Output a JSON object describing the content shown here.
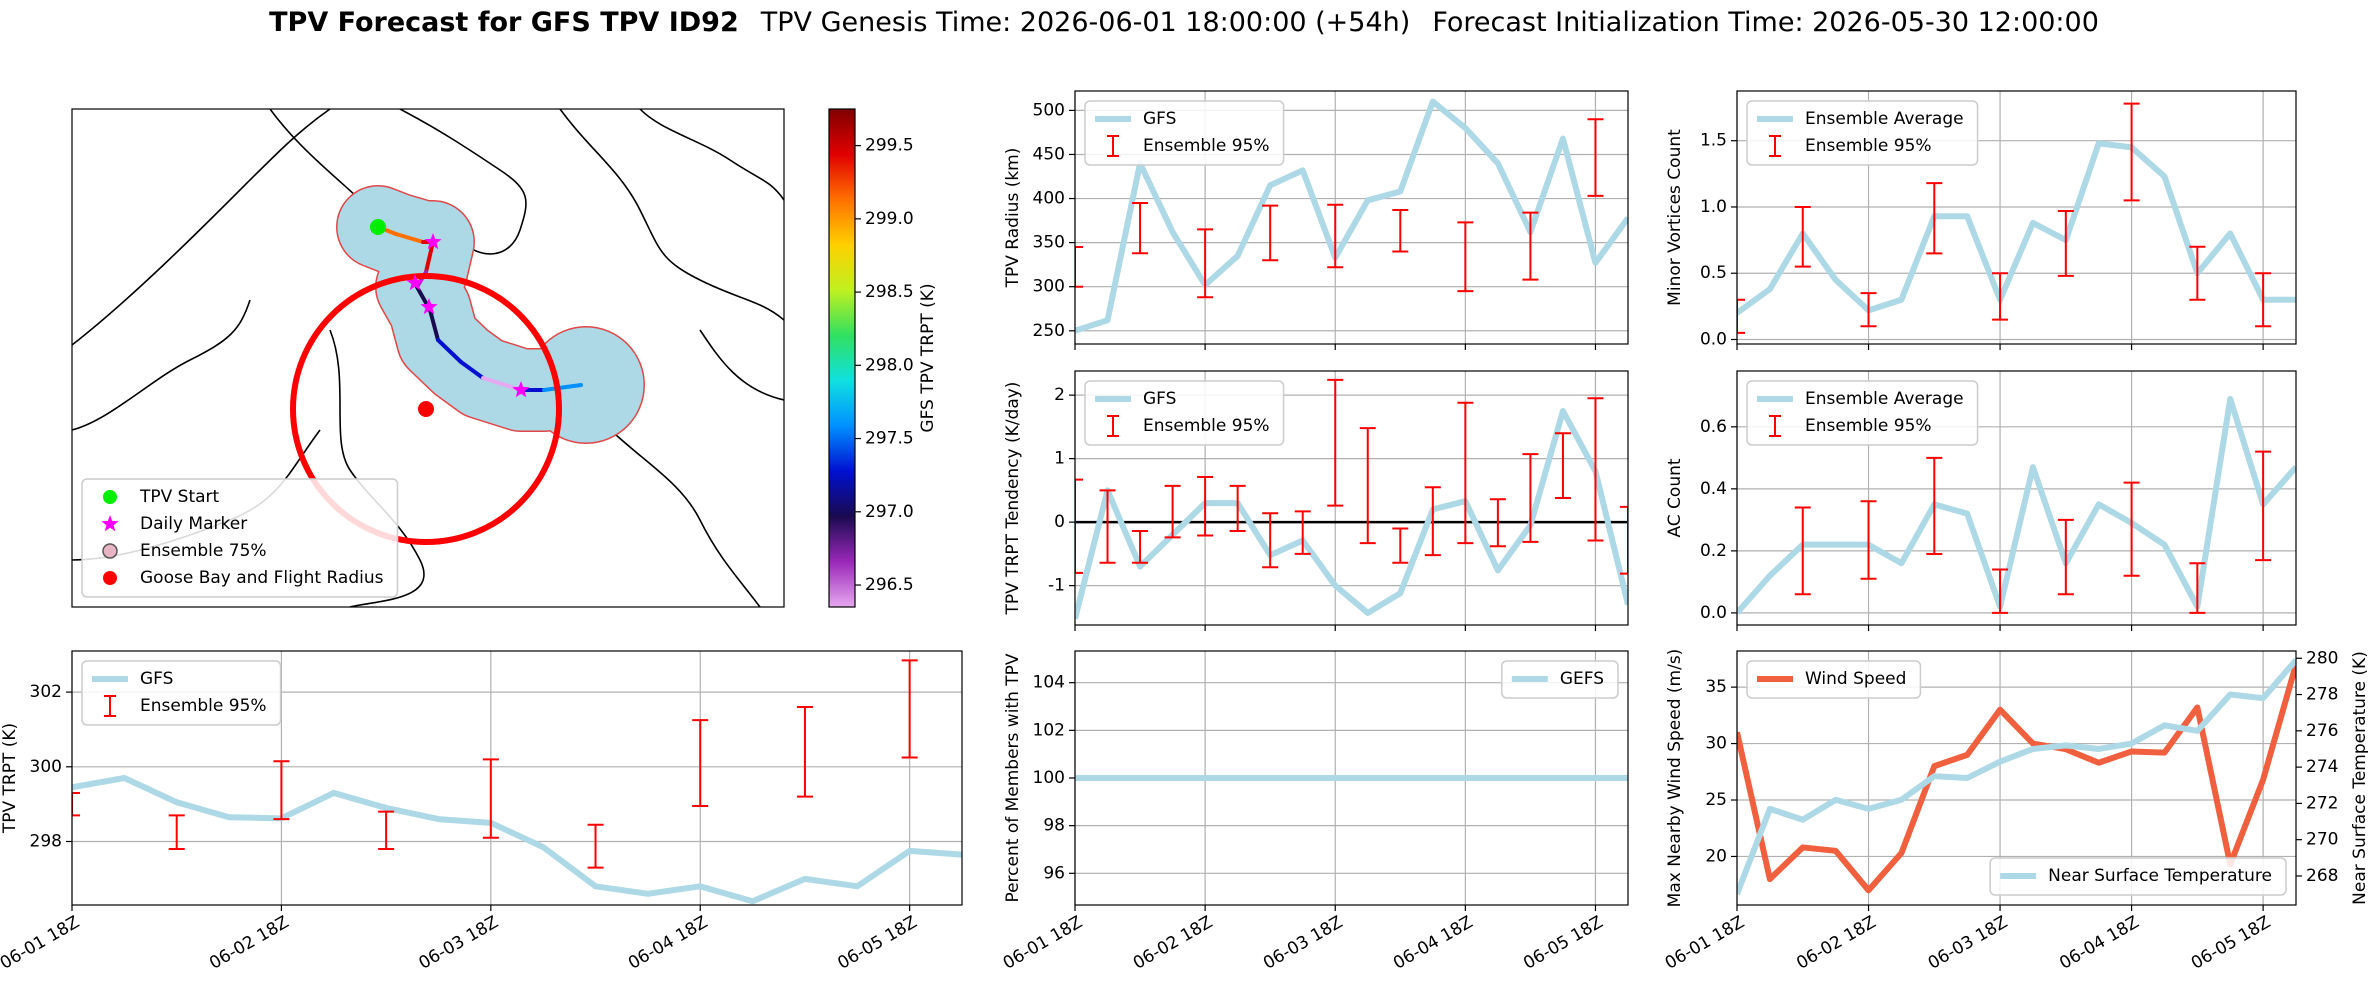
{
  "header": {
    "title": "TPV Forecast for GFS TPV ID92",
    "genesis": "TPV Genesis Time: 2026-06-01 18:00:00 (+54h)",
    "init": "Forecast Initialization Time: 2026-05-30 12:00:00"
  },
  "chart_data": [
    {
      "type": "map",
      "legend": [
        {
          "label": "TPV Start",
          "color": "#00ee00",
          "marker": "circle"
        },
        {
          "label": "Daily Marker",
          "color": "#ff00ff",
          "marker": "star"
        },
        {
          "label": "Ensemble 75%",
          "color": "#e8b4c4",
          "marker": "circle"
        },
        {
          "label": "Goose Bay and Flight Radius",
          "color": "#ff0000",
          "marker": "circle"
        }
      ],
      "colorbar": {
        "label": "GFS TPV TRPT (K)",
        "lim": [
          296.35,
          299.75
        ],
        "ticks": [
          296.5,
          {
            "value": 297,
            "label": "297.0"
          },
          297.5,
          {
            "value": 298,
            "label": "298.0"
          },
          298.5,
          {
            "value": 299,
            "label": "299.0"
          },
          299.5
        ],
        "colors": [
          "#e6a8f0",
          "#9a28b8",
          "#1a0a50",
          "#0010d0",
          "#0090ff",
          "#10e0e0",
          "#30e060",
          "#c0f020",
          "#ffd000",
          "#ff7000",
          "#e00000",
          "#800000"
        ]
      }
    },
    {
      "type": "line",
      "ylabel": "TPV Radius (km)",
      "grid": true,
      "legend": "upper left",
      "xlim": [
        0,
        102
      ],
      "xticks": [
        0,
        24,
        48,
        72,
        96
      ],
      "ylim": [
        235,
        522
      ],
      "yticks": [
        250,
        300,
        350,
        400,
        450,
        500
      ],
      "x": [
        0,
        6,
        12,
        18,
        24,
        30,
        36,
        42,
        48,
        54,
        60,
        66,
        72,
        78,
        84,
        90,
        96,
        102
      ],
      "series": [
        {
          "name": "GFS",
          "color": "#add8e6",
          "values": [
            250,
            262,
            440,
            362,
            302,
            335,
            415,
            432,
            333,
            398,
            408,
            510,
            480,
            440,
            362,
            468,
            327,
            378
          ]
        },
        {
          "name": "Ensemble 95%",
          "color": "#ff0000",
          "x": [
            0,
            12,
            24,
            36,
            48,
            60,
            72,
            84,
            96
          ],
          "low": [
            300,
            338,
            288,
            330,
            322,
            340,
            295,
            308,
            403
          ],
          "high": [
            345,
            395,
            365,
            392,
            393,
            387,
            373,
            384,
            490
          ]
        }
      ]
    },
    {
      "type": "line",
      "ylabel": "Minor Vortices Count",
      "grid": true,
      "legend": "upper left",
      "xlim": [
        0,
        102
      ],
      "xticks": [
        0,
        24,
        48,
        72,
        96
      ],
      "ylim": [
        -0.034,
        1.875
      ],
      "yticks": [
        {
          "value": 0,
          "label": "0.0"
        },
        0.5,
        {
          "value": 1,
          "label": "1.0"
        },
        1.5
      ],
      "x": [
        0,
        6,
        12,
        18,
        24,
        30,
        36,
        42,
        48,
        54,
        60,
        66,
        72,
        78,
        84,
        90,
        96,
        102
      ],
      "series": [
        {
          "name": "Ensemble Average",
          "color": "#add8e6",
          "values": [
            0.2,
            0.38,
            0.8,
            0.45,
            0.22,
            0.3,
            0.93,
            0.93,
            0.3,
            0.88,
            0.75,
            1.48,
            1.45,
            1.23,
            0.5,
            0.8,
            0.3,
            0.3
          ]
        },
        {
          "name": "Ensemble 95%",
          "color": "#ff0000",
          "x": [
            0,
            12,
            24,
            36,
            48,
            60,
            72,
            84,
            96
          ],
          "low": [
            0.05,
            0.55,
            0.1,
            0.65,
            0.15,
            0.48,
            1.05,
            0.3,
            0.1
          ],
          "high": [
            0.3,
            1.0,
            0.35,
            1.18,
            0.5,
            0.97,
            1.78,
            0.7,
            0.5
          ]
        }
      ]
    },
    {
      "type": "line",
      "ylabel": "TPV TRPT Tendency (K/day)",
      "grid": true,
      "legend": "upper left",
      "hline": 0,
      "xlim": [
        0,
        102
      ],
      "xticks": [
        0,
        24,
        48,
        72,
        96
      ],
      "ylim": [
        -1.62,
        2.38
      ],
      "yticks": [
        -1,
        0,
        1,
        2
      ],
      "x": [
        0,
        6,
        12,
        18,
        24,
        30,
        36,
        42,
        48,
        54,
        60,
        66,
        72,
        78,
        84,
        90,
        96,
        102
      ],
      "series": [
        {
          "name": "GFS",
          "color": "#add8e6",
          "values": [
            -1.52,
            0.5,
            -0.7,
            -0.2,
            0.3,
            0.3,
            -0.52,
            -0.29,
            -1.0,
            -1.43,
            -1.12,
            0.2,
            0.33,
            -0.76,
            -0.05,
            1.75,
            0.8,
            -1.3
          ]
        },
        {
          "name": "Ensemble 95%",
          "color": "#ff0000",
          "x": [
            0,
            6,
            12,
            18,
            24,
            30,
            36,
            42,
            48,
            54,
            60,
            66,
            72,
            78,
            84,
            90,
            96,
            102
          ],
          "low": [
            -0.8,
            -0.64,
            -0.64,
            -0.24,
            -0.21,
            -0.14,
            -0.71,
            -0.5,
            0.26,
            -0.33,
            -0.64,
            -0.52,
            -0.33,
            -0.38,
            -0.31,
            0.38,
            -0.29,
            -0.81
          ],
          "high": [
            0.67,
            0.5,
            -0.14,
            0.57,
            0.71,
            0.57,
            0.14,
            0.17,
            2.24,
            1.48,
            -0.1,
            0.55,
            1.88,
            0.36,
            1.07,
            1.4,
            1.95,
            0.24
          ]
        }
      ]
    },
    {
      "type": "line",
      "ylabel": "AC Count",
      "grid": true,
      "legend": "upper left",
      "xlim": [
        0,
        102
      ],
      "xticks": [
        0,
        24,
        48,
        72,
        96
      ],
      "ylim": [
        -0.039,
        0.78
      ],
      "yticks": [
        {
          "value": 0,
          "label": "0.0"
        },
        0.2,
        0.4,
        0.6
      ],
      "x": [
        0,
        6,
        12,
        18,
        24,
        30,
        36,
        42,
        48,
        54,
        60,
        66,
        72,
        78,
        84,
        90,
        96,
        102
      ],
      "series": [
        {
          "name": "Ensemble Average",
          "color": "#add8e6",
          "values": [
            0,
            0.12,
            0.22,
            0.22,
            0.22,
            0.16,
            0.35,
            0.32,
            0.02,
            0.47,
            0.16,
            0.35,
            0.29,
            0.22,
            0.02,
            0.69,
            0.35,
            0.47
          ]
        },
        {
          "name": "Ensemble 95%",
          "color": "#ff0000",
          "x": [
            0,
            12,
            24,
            36,
            48,
            60,
            72,
            84,
            96
          ],
          "low": [
            null,
            0.06,
            0.11,
            0.19,
            0,
            0.06,
            0.12,
            0,
            0.17
          ],
          "high": [
            null,
            0.34,
            0.36,
            0.5,
            0.14,
            0.3,
            0.42,
            0.16,
            0.52
          ]
        }
      ]
    },
    {
      "type": "line",
      "ylabel": "TPV TRPT (K)",
      "grid": true,
      "legend": "upper left",
      "xlim": [
        0,
        102
      ],
      "xticks": [
        {
          "value": 0,
          "label": "06-01 18Z"
        },
        {
          "value": 24,
          "label": "06-02 18Z"
        },
        {
          "value": 48,
          "label": "06-03 18Z"
        },
        {
          "value": 72,
          "label": "06-04 18Z"
        },
        {
          "value": 96,
          "label": "06-05 18Z"
        }
      ],
      "ylim": [
        296.3,
        303.1
      ],
      "yticks": [
        298,
        300,
        302
      ],
      "x": [
        0,
        6,
        12,
        18,
        24,
        30,
        36,
        42,
        48,
        54,
        60,
        66,
        72,
        78,
        84,
        90,
        96,
        102
      ],
      "series": [
        {
          "name": "GFS",
          "color": "#add8e6",
          "values": [
            299.45,
            299.7,
            299.05,
            298.65,
            298.62,
            299.3,
            298.9,
            298.6,
            298.5,
            297.85,
            296.8,
            296.6,
            296.8,
            296.4,
            297.0,
            296.8,
            297.75,
            297.65
          ]
        },
        {
          "name": "Ensemble 95%",
          "color": "#ff0000",
          "x": [
            0,
            12,
            24,
            36,
            48,
            60,
            72,
            84,
            96
          ],
          "low": [
            298.7,
            297.8,
            298.6,
            297.8,
            298.1,
            297.3,
            298.95,
            299.2,
            300.25
          ],
          "high": [
            299.3,
            298.7,
            300.15,
            298.8,
            300.2,
            298.45,
            301.25,
            301.6,
            302.85
          ]
        }
      ]
    },
    {
      "type": "line",
      "ylabel": "Percent of Members with TPV",
      "grid": true,
      "legend": "upper right",
      "xlim": [
        0,
        102
      ],
      "xticks": [
        {
          "value": 0,
          "label": "06-01 18Z"
        },
        {
          "value": 24,
          "label": "06-02 18Z"
        },
        {
          "value": 48,
          "label": "06-03 18Z"
        },
        {
          "value": 72,
          "label": "06-04 18Z"
        },
        {
          "value": 96,
          "label": "06-05 18Z"
        }
      ],
      "ylim": [
        94.67,
        105.33
      ],
      "yticks": [
        96,
        98,
        100,
        102,
        104
      ],
      "x": [
        0,
        6,
        12,
        18,
        24,
        30,
        36,
        42,
        48,
        54,
        60,
        66,
        72,
        78,
        84,
        90,
        96,
        102
      ],
      "series": [
        {
          "name": "GEFS",
          "color": "#add8e6",
          "values": [
            100,
            100,
            100,
            100,
            100,
            100,
            100,
            100,
            100,
            100,
            100,
            100,
            100,
            100,
            100,
            100,
            100,
            100
          ]
        }
      ]
    },
    {
      "type": "line",
      "ylabel": "Max Nearby Wind Speed (m/s)",
      "ylabel_color": "#f0603f",
      "y2label": "Near Surface Temperature (K)",
      "y2label_color": "#4169e1",
      "grid": true,
      "legend": "upper left",
      "xlim": [
        0,
        102
      ],
      "xticks": [
        {
          "value": 0,
          "label": "06-01 18Z"
        },
        {
          "value": 24,
          "label": "06-02 18Z"
        },
        {
          "value": 48,
          "label": "06-03 18Z"
        },
        {
          "value": 72,
          "label": "06-04 18Z"
        },
        {
          "value": 96,
          "label": "06-05 18Z"
        }
      ],
      "ylim": [
        15.7,
        38.2
      ],
      "yticks": [
        20,
        25,
        30,
        35
      ],
      "y2lim": [
        266.4,
        280.4
      ],
      "y2ticks": [
        268,
        270,
        272,
        274,
        276,
        278,
        280
      ],
      "x": [
        0,
        6,
        12,
        18,
        24,
        30,
        36,
        42,
        48,
        54,
        60,
        66,
        72,
        78,
        84,
        90,
        96,
        102
      ],
      "series": [
        {
          "name": "Wind Speed",
          "color": "#f0603f",
          "values": [
            31,
            18,
            20.8,
            20.5,
            17,
            20.3,
            28,
            29,
            33,
            30,
            29.5,
            28.3,
            29.3,
            29.2,
            33.2,
            19.3,
            26.8,
            37
          ]
        },
        {
          "name": "Near Surface Temperature",
          "color": "#add8e6",
          "axis": "y2",
          "legend": "lower right",
          "values": [
            267,
            271.7,
            271.1,
            272.2,
            271.7,
            272.2,
            273.5,
            273.4,
            274.3,
            275,
            275.2,
            275,
            275.3,
            276.3,
            276,
            278,
            277.8,
            279.9
          ]
        }
      ]
    }
  ]
}
